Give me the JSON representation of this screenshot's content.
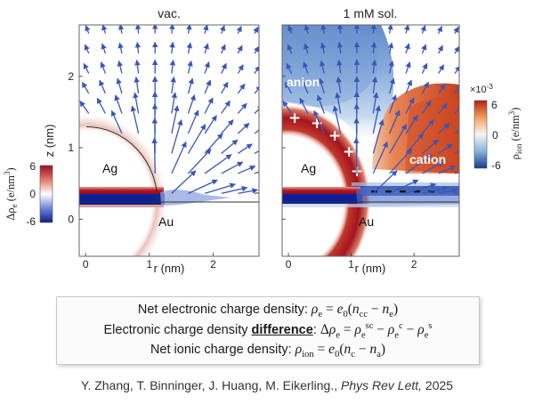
{
  "panels": [
    {
      "title": "vac.",
      "mode": "vac"
    },
    {
      "title": "1 mM sol.",
      "mode": "sol"
    }
  ],
  "axes": {
    "xlabel": "r (nm)",
    "ylabel": "z (nm)",
    "xticks": [
      "0",
      "1",
      "2"
    ],
    "yticks": [
      "0",
      "1",
      "2"
    ],
    "xrange": [
      -0.1,
      2.72
    ],
    "zrange": [
      -0.52,
      2.72
    ]
  },
  "labels": {
    "ag": "Ag",
    "au": "Au",
    "anion": "anion",
    "cation": "cation"
  },
  "electron_colorbar": {
    "label": "Δρ",
    "sub": "e",
    "unit": " (e/nm",
    "unit_sup": "3",
    "unit_end": ")",
    "ticks": [
      "6",
      "0",
      "-6"
    ]
  },
  "ion_colorbar": {
    "label": "ρ",
    "sub": "ion",
    "unit": " (e/nm",
    "unit_sup": "3",
    "unit_end": ")",
    "multiplier": "×10",
    "multiplier_exp": "-3",
    "ticks": [
      "6",
      "0",
      "-6"
    ]
  },
  "colors": {
    "positive": "#b2182b",
    "negative": "#2140a8",
    "arrow": "#3a56b8"
  },
  "equations": {
    "eq1_label": "Net electronic charge density: ",
    "eq2_label": "Electronic charge density ",
    "eq2_highlight": "difference",
    "eq2_colon": ": ",
    "eq3_label": "Net ionic charge density: "
  },
  "citation": {
    "authors": "Y. Zhang, T. Binninger, J. Huang, M. Eikerling., ",
    "journal": "Phys Rev Lett,",
    "year": " 2025"
  }
}
